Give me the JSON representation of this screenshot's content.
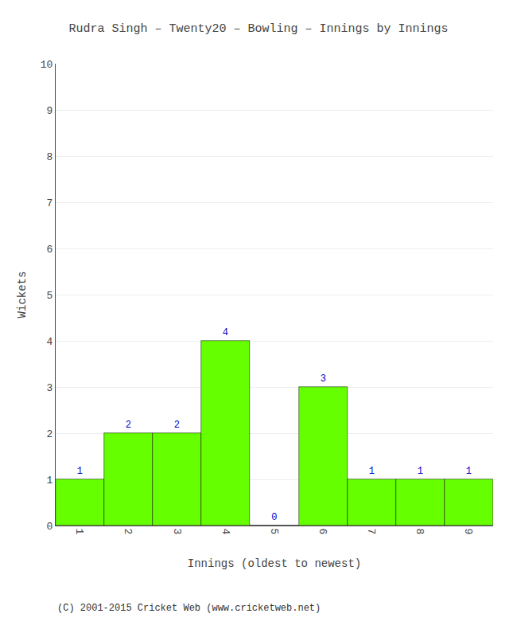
{
  "chart_data": {
    "type": "bar",
    "title": "Rudra Singh – Twenty20 – Bowling – Innings by Innings",
    "xlabel": "Innings (oldest to newest)",
    "ylabel": "Wickets",
    "categories": [
      "1",
      "2",
      "3",
      "4",
      "5",
      "6",
      "7",
      "8",
      "9"
    ],
    "values": [
      1,
      2,
      2,
      4,
      0,
      3,
      1,
      1,
      1
    ],
    "color": "#66ff00",
    "ylim": [
      0,
      10
    ],
    "yticks": [
      0,
      1,
      2,
      3,
      4,
      5,
      6,
      7,
      8,
      9,
      10
    ],
    "grid": true,
    "data_labels": true,
    "annotations": [
      "(C) 2001-2015 Cricket Web (www.cricketweb.net)"
    ]
  }
}
